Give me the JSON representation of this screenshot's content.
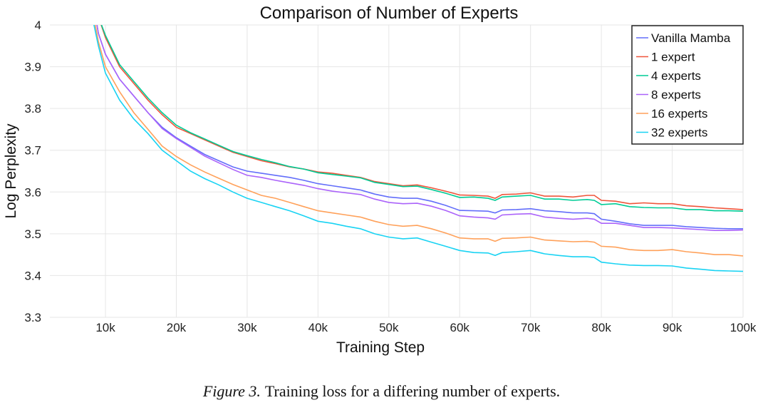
{
  "chart_data": {
    "type": "line",
    "title": "Comparison of Number of Experts",
    "xlabel": "Training Step",
    "ylabel": "Log Perplexity",
    "xlim": [
      0,
      100000
    ],
    "ylim": [
      3.3,
      4.0
    ],
    "xticks": [
      10000,
      20000,
      30000,
      40000,
      50000,
      60000,
      70000,
      80000,
      90000,
      100000
    ],
    "xtick_labels": [
      "10k",
      "20k",
      "30k",
      "40k",
      "50k",
      "60k",
      "70k",
      "80k",
      "90k",
      "100k"
    ],
    "yticks": [
      3.3,
      3.4,
      3.5,
      3.6,
      3.7,
      3.8,
      3.9,
      4.0
    ],
    "ytick_labels": [
      "3.3",
      "3.4",
      "3.5",
      "3.6",
      "3.7",
      "3.8",
      "3.9",
      "4"
    ],
    "grid": true,
    "legend_position": "top-right",
    "x": [
      8000,
      9000,
      10000,
      12000,
      14000,
      16000,
      18000,
      20000,
      22000,
      24000,
      26000,
      28000,
      30000,
      32000,
      34000,
      36000,
      38000,
      40000,
      42000,
      44000,
      46000,
      48000,
      50000,
      52000,
      54000,
      56000,
      58000,
      60000,
      62000,
      64000,
      65000,
      66000,
      68000,
      70000,
      72000,
      74000,
      76000,
      78000,
      79000,
      80000,
      82000,
      84000,
      86000,
      88000,
      90000,
      92000,
      94000,
      96000,
      98000,
      100000
    ],
    "series": [
      {
        "name": "Vanilla Mamba",
        "color": "#636efa",
        "values": [
          4.08,
          3.98,
          3.93,
          3.87,
          3.83,
          3.79,
          3.755,
          3.73,
          3.71,
          3.69,
          3.675,
          3.66,
          3.65,
          3.645,
          3.64,
          3.635,
          3.628,
          3.62,
          3.615,
          3.61,
          3.605,
          3.595,
          3.588,
          3.585,
          3.585,
          3.578,
          3.568,
          3.556,
          3.555,
          3.554,
          3.55,
          3.557,
          3.558,
          3.56,
          3.555,
          3.553,
          3.55,
          3.55,
          3.548,
          3.535,
          3.53,
          3.524,
          3.52,
          3.52,
          3.52,
          3.517,
          3.515,
          3.513,
          3.512,
          3.512
        ]
      },
      {
        "name": "1 expert",
        "color": "#ef553b",
        "values": [
          4.12,
          4.02,
          3.97,
          3.9,
          3.86,
          3.82,
          3.785,
          3.755,
          3.74,
          3.725,
          3.71,
          3.695,
          3.685,
          3.675,
          3.668,
          3.66,
          3.655,
          3.648,
          3.645,
          3.64,
          3.635,
          3.625,
          3.62,
          3.615,
          3.617,
          3.61,
          3.602,
          3.593,
          3.592,
          3.59,
          3.585,
          3.594,
          3.595,
          3.598,
          3.59,
          3.59,
          3.588,
          3.592,
          3.592,
          3.58,
          3.578,
          3.572,
          3.574,
          3.572,
          3.572,
          3.567,
          3.565,
          3.562,
          3.56,
          3.558
        ]
      },
      {
        "name": "4 experts",
        "color": "#00cc96",
        "values": [
          4.12,
          4.02,
          3.975,
          3.905,
          3.865,
          3.825,
          3.79,
          3.76,
          3.742,
          3.727,
          3.712,
          3.697,
          3.687,
          3.678,
          3.67,
          3.661,
          3.655,
          3.646,
          3.642,
          3.638,
          3.634,
          3.623,
          3.618,
          3.613,
          3.614,
          3.606,
          3.597,
          3.587,
          3.588,
          3.585,
          3.58,
          3.588,
          3.59,
          3.592,
          3.583,
          3.583,
          3.58,
          3.582,
          3.58,
          3.57,
          3.572,
          3.565,
          3.563,
          3.562,
          3.562,
          3.558,
          3.558,
          3.555,
          3.555,
          3.554
        ]
      },
      {
        "name": "8 experts",
        "color": "#ab63fa",
        "values": [
          4.08,
          3.98,
          3.93,
          3.87,
          3.83,
          3.79,
          3.752,
          3.728,
          3.707,
          3.686,
          3.67,
          3.654,
          3.64,
          3.635,
          3.628,
          3.622,
          3.616,
          3.608,
          3.602,
          3.598,
          3.594,
          3.583,
          3.575,
          3.572,
          3.573,
          3.566,
          3.556,
          3.543,
          3.54,
          3.538,
          3.535,
          3.545,
          3.547,
          3.548,
          3.54,
          3.537,
          3.535,
          3.537,
          3.535,
          3.525,
          3.525,
          3.52,
          3.515,
          3.515,
          3.514,
          3.512,
          3.51,
          3.508,
          3.508,
          3.509
        ]
      },
      {
        "name": "16 experts",
        "color": "#ffa15a",
        "values": [
          4.05,
          3.96,
          3.9,
          3.84,
          3.79,
          3.75,
          3.71,
          3.685,
          3.665,
          3.648,
          3.633,
          3.618,
          3.605,
          3.592,
          3.585,
          3.575,
          3.565,
          3.555,
          3.55,
          3.545,
          3.54,
          3.53,
          3.522,
          3.518,
          3.52,
          3.512,
          3.502,
          3.49,
          3.488,
          3.488,
          3.482,
          3.489,
          3.49,
          3.492,
          3.485,
          3.483,
          3.481,
          3.482,
          3.48,
          3.47,
          3.468,
          3.462,
          3.46,
          3.46,
          3.462,
          3.457,
          3.454,
          3.45,
          3.45,
          3.447
        ]
      },
      {
        "name": "32 experts",
        "color": "#19d3f3",
        "values": [
          4.03,
          3.95,
          3.885,
          3.82,
          3.775,
          3.74,
          3.7,
          3.675,
          3.65,
          3.632,
          3.617,
          3.6,
          3.585,
          3.575,
          3.565,
          3.555,
          3.543,
          3.53,
          3.525,
          3.518,
          3.512,
          3.5,
          3.492,
          3.488,
          3.49,
          3.48,
          3.47,
          3.46,
          3.455,
          3.454,
          3.448,
          3.455,
          3.457,
          3.46,
          3.452,
          3.448,
          3.445,
          3.445,
          3.443,
          3.432,
          3.428,
          3.425,
          3.424,
          3.424,
          3.423,
          3.418,
          3.415,
          3.412,
          3.411,
          3.41
        ]
      }
    ]
  },
  "caption": {
    "label": "Figure 3.",
    "text": "Training loss for a differing number of experts."
  }
}
